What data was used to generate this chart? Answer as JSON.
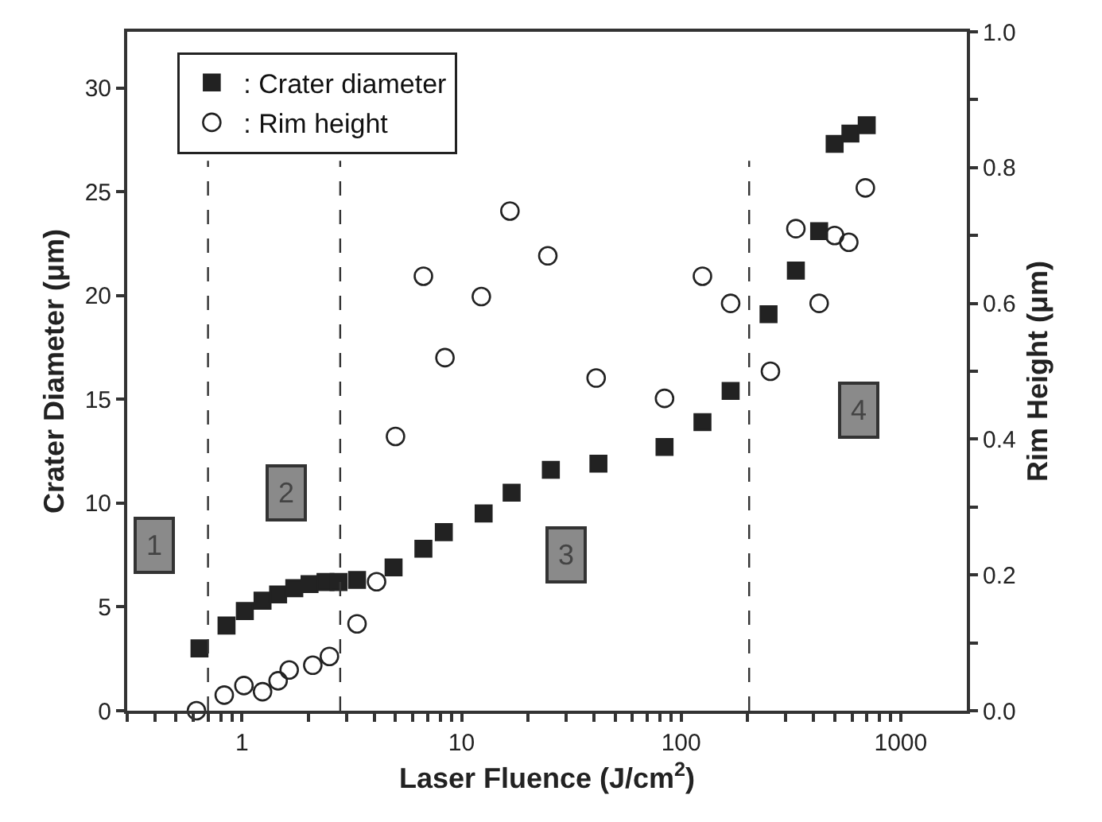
{
  "chart_data": {
    "type": "scatter",
    "xlabel": "Laser Fluence (J/cm$^{2}$)",
    "ylabel": "Crater Diameter (μm)",
    "y2label": "Rim Height (μm)",
    "log": "x",
    "legend": "top left",
    "xlim": [
      0.3,
      2000
    ],
    "xticks": [
      {
        "value": 0.3,
        "label": null
      },
      {
        "value": 0.4,
        "label": null
      },
      {
        "value": 0.5,
        "label": null
      },
      {
        "value": 0.6,
        "label": null
      },
      {
        "value": 0.7,
        "label": null
      },
      {
        "value": 0.8,
        "label": null
      },
      {
        "value": 0.9,
        "label": null
      },
      1,
      {
        "value": 2,
        "label": null
      },
      {
        "value": 3,
        "label": null
      },
      {
        "value": 4,
        "label": null
      },
      {
        "value": 5,
        "label": null
      },
      {
        "value": 6,
        "label": null
      },
      {
        "value": 7,
        "label": null
      },
      {
        "value": 8,
        "label": null
      },
      {
        "value": 9,
        "label": null
      },
      10,
      {
        "value": 20,
        "label": null
      },
      {
        "value": 30,
        "label": null
      },
      {
        "value": 40,
        "label": null
      },
      {
        "value": 50,
        "label": null
      },
      {
        "value": 60,
        "label": null
      },
      {
        "value": 70,
        "label": null
      },
      {
        "value": 80,
        "label": null
      },
      {
        "value": 90,
        "label": null
      },
      100,
      {
        "value": 200,
        "label": null
      },
      {
        "value": 300,
        "label": null
      },
      {
        "value": 400,
        "label": null
      },
      {
        "value": 500,
        "label": null
      },
      {
        "value": 600,
        "label": null
      },
      {
        "value": 700,
        "label": null
      },
      {
        "value": 800,
        "label": null
      },
      {
        "value": 900,
        "label": null
      },
      1000
    ],
    "ylim": [
      0,
      32.7
    ],
    "yticks": [
      0,
      5,
      10,
      15,
      20,
      25,
      30
    ],
    "y2lim": [
      0,
      1.0
    ],
    "y2ticks": [
      {
        "value": 0,
        "label": "0.0"
      },
      {
        "value": 0.1,
        "label": null
      },
      0.2,
      {
        "value": 0.3,
        "label": null
      },
      0.4,
      {
        "value": 0.5,
        "label": null
      },
      0.6,
      {
        "value": 0.7,
        "label": null
      },
      0.8,
      {
        "value": 0.9,
        "label": null
      },
      {
        "value": 1.0,
        "label": "1.0"
      }
    ],
    "series": [
      {
        "name": ": Crater diameter",
        "color": "#222222",
        "marker": "square",
        "x": [
          0.64,
          0.85,
          1.03,
          1.24,
          1.46,
          1.73,
          2.03,
          2.4,
          2.75,
          3.34,
          4.9,
          6.7,
          8.3,
          12.6,
          16.9,
          25.5,
          42,
          84,
          125,
          168,
          250,
          333,
          425,
          500,
          590,
          700
        ],
        "values": [
          3.0,
          4.1,
          4.8,
          5.3,
          5.6,
          5.9,
          6.1,
          6.2,
          6.2,
          6.3,
          6.9,
          7.8,
          8.6,
          9.5,
          10.5,
          11.6,
          11.9,
          12.7,
          13.9,
          15.4,
          19.1,
          21.2,
          23.1,
          27.3,
          27.8,
          28.2
        ]
      },
      {
        "name": ": Rim height",
        "color": "#222222",
        "marker": "circle",
        "axis": "y2",
        "x": [
          0.62,
          0.83,
          1.02,
          1.24,
          1.46,
          1.64,
          2.1,
          2.5,
          3.34,
          4.1,
          5.0,
          6.7,
          8.4,
          12.3,
          16.6,
          24.7,
          41,
          84,
          125,
          168,
          255,
          333,
          425,
          500,
          580,
          690
        ],
        "values": [
          0.0,
          0.023,
          0.037,
          0.028,
          0.044,
          0.06,
          0.067,
          0.08,
          0.128,
          0.19,
          0.404,
          0.64,
          0.52,
          0.61,
          0.736,
          0.67,
          0.49,
          0.46,
          0.64,
          0.6,
          0.5,
          0.71,
          0.6,
          0.7,
          0.69,
          0.77
        ]
      }
    ],
    "ref_lines": [
      {
        "axis": "x",
        "value": 0.7,
        "line_style": "dashed"
      },
      {
        "axis": "x",
        "value": 2.8,
        "line_style": "dashed"
      },
      {
        "axis": "x",
        "value": 204,
        "line_style": "dashed"
      }
    ],
    "annotations": [
      {
        "text": "1",
        "x": 0.4,
        "y": 8
      },
      {
        "text": "2",
        "x": 1.6,
        "y": 10.5
      },
      {
        "text": "3",
        "x": 30,
        "y": 7.5
      },
      {
        "text": "4",
        "x": 640,
        "y": 14.5
      }
    ]
  }
}
